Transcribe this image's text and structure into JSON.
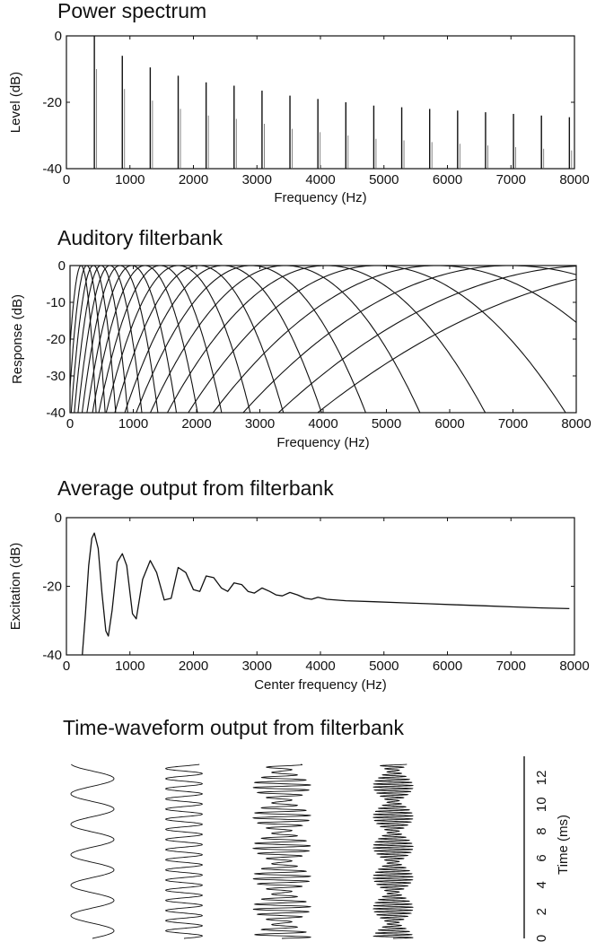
{
  "chart_data": [
    {
      "type": "bar",
      "title": "Power spectrum",
      "xlabel": "Frequency (Hz)",
      "ylabel": "Level (dB)",
      "xlim": [
        0,
        8000
      ],
      "ylim": [
        -40,
        0
      ],
      "x_ticks": [
        "0",
        "1000",
        "2000",
        "3000",
        "4000",
        "5000",
        "6000",
        "7000",
        "8000"
      ],
      "y_ticks": [
        "0",
        "-20",
        "-40"
      ],
      "x": [
        440,
        880,
        1320,
        1760,
        2200,
        2640,
        3080,
        3520,
        3960,
        4400,
        4840,
        5280,
        5720,
        6160,
        6600,
        7040,
        7480,
        7920
      ],
      "values": [
        0,
        -6,
        -9.5,
        -12,
        -14,
        -15,
        -16.5,
        -18,
        -19,
        -20,
        -21,
        -21.5,
        -22,
        -22.5,
        -23,
        -23.5,
        -24,
        -24.5
      ]
    },
    {
      "type": "line",
      "title": "Auditory filterbank",
      "xlabel": "Frequency (Hz)",
      "ylabel": "Response (dB)",
      "xlim": [
        0,
        8000
      ],
      "ylim": [
        -40,
        0
      ],
      "x_ticks": [
        "0",
        "1000",
        "2000",
        "3000",
        "4000",
        "5000",
        "6000",
        "7000",
        "8000"
      ],
      "y_ticks": [
        "0",
        "-10",
        "-20",
        "-30",
        "-40"
      ],
      "center_frequencies": [
        175,
        265,
        370,
        490,
        630,
        790,
        975,
        1185,
        1425,
        1710,
        2040,
        2420,
        2860,
        3400,
        4050,
        4850,
        5800,
        6950,
        8300,
        9800
      ],
      "peak_level": 0
    },
    {
      "type": "line",
      "title": "Average output from filterbank",
      "xlabel": "Center frequency (Hz)",
      "ylabel": "Excitation (dB)",
      "xlim": [
        0,
        8000
      ],
      "ylim": [
        -40,
        0
      ],
      "x_ticks": [
        "0",
        "1000",
        "2000",
        "3000",
        "4000",
        "5000",
        "6000",
        "7000",
        "8000"
      ],
      "y_ticks": [
        "0",
        "-20",
        "-40"
      ],
      "x": [
        250,
        300,
        350,
        400,
        440,
        500,
        560,
        620,
        660,
        720,
        800,
        880,
        950,
        1040,
        1100,
        1200,
        1320,
        1420,
        1540,
        1650,
        1760,
        1880,
        2000,
        2100,
        2200,
        2320,
        2440,
        2540,
        2640,
        2760,
        2860,
        2960,
        3080,
        3200,
        3300,
        3400,
        3520,
        3640,
        3760,
        3860,
        3960,
        4100,
        4400,
        4840,
        5280,
        5720,
        6160,
        6600,
        7040,
        7480,
        7920
      ],
      "values": [
        -40,
        -28,
        -14,
        -6,
        -4.5,
        -9,
        -22,
        -33,
        -34.5,
        -27,
        -13,
        -10.5,
        -14,
        -28,
        -29.5,
        -18,
        -12.5,
        -16,
        -24,
        -23.5,
        -14.5,
        -16,
        -21,
        -21.5,
        -17,
        -17.5,
        -20.5,
        -21.5,
        -19,
        -19.5,
        -21.5,
        -22,
        -20.5,
        -21.5,
        -22.5,
        -22.8,
        -21.8,
        -22.5,
        -23.5,
        -23.8,
        -23.2,
        -23.8,
        -24.2,
        -24.5,
        -24.8,
        -25.1,
        -25.4,
        -25.7,
        -26,
        -26.3,
        -26.5
      ]
    },
    {
      "type": "line",
      "title": "Time-waveform output from filterbank",
      "ylabel": "Time (ms)",
      "y_ticks": [
        "0",
        "2",
        "4",
        "6",
        "8",
        "10",
        "12"
      ],
      "ylim": [
        0,
        13
      ],
      "waveforms": [
        {
          "carrier_hz": 440,
          "envelope_mod_hz": 0,
          "amplitude": 1.0
        },
        {
          "carrier_hz": 1320,
          "envelope_mod_hz": 0,
          "amplitude": 0.85
        },
        {
          "carrier_hz": 2640,
          "envelope_mod_hz": 440,
          "amplitude": 1.0
        },
        {
          "carrier_hz": 4400,
          "envelope_mod_hz": 440,
          "amplitude": 0.85
        }
      ]
    }
  ]
}
